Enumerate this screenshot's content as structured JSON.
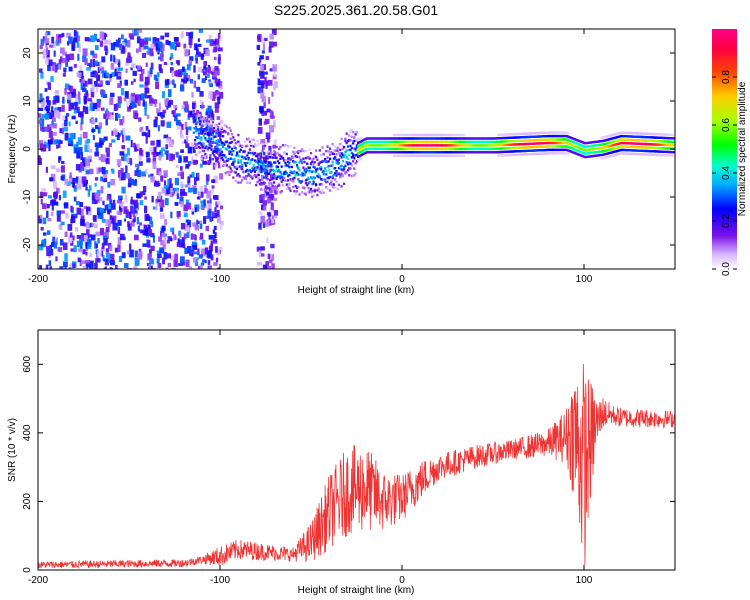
{
  "title": "S225.2025.361.20.58.G01",
  "chart_data": [
    {
      "type": "heatmap",
      "name": "spectrogram",
      "xlabel": "Height of straight line (km)",
      "ylabel": "Frequency (Hz)",
      "xlim": [
        -200,
        150
      ],
      "ylim": [
        -25,
        25
      ],
      "xticks": [
        "-200",
        "-100",
        "0",
        "100"
      ],
      "xtick_values": [
        -200,
        -100,
        0,
        100
      ],
      "yticks": [
        "-20",
        "-10",
        "0",
        "10",
        "20"
      ],
      "ytick_values": [
        -20,
        -10,
        0,
        10,
        20
      ],
      "colorbar": {
        "label": "Normalized spectral amplitude",
        "range": [
          0,
          1
        ],
        "ticks": [
          "0.0",
          "0.2",
          "0.4",
          "0.6",
          "0.8"
        ],
        "tick_values": [
          0,
          0.2,
          0.4,
          0.6,
          0.8
        ]
      },
      "ridge": {
        "x": [
          -115,
          -100,
          -90,
          -80,
          -70,
          -60,
          -50,
          -40,
          -35,
          -30,
          -25,
          -20,
          0,
          20,
          50,
          80,
          90,
          100,
          110,
          120,
          150
        ],
        "freq": [
          4,
          1,
          -2,
          -3,
          -4,
          -4,
          -5,
          -4,
          -3,
          -1,
          0,
          1,
          1,
          1,
          1,
          1.5,
          1.5,
          0,
          0.5,
          1.5,
          1
        ]
      },
      "noise_regions": [
        {
          "x_from": -200,
          "x_to": -100,
          "f_from": -25,
          "f_to": 25,
          "level": 0.3
        },
        {
          "x_from": -80,
          "x_to": -70,
          "f_from": -25,
          "f_to": 25,
          "level": 0.25
        }
      ]
    },
    {
      "type": "line",
      "name": "snr",
      "xlabel": "Height of straight line (km)",
      "ylabel": "SNR (10 * v/v)",
      "xlim": [
        -200,
        150
      ],
      "ylim": [
        0,
        700
      ],
      "xticks": [
        "-200",
        "-100",
        "0",
        "100"
      ],
      "xtick_values": [
        -200,
        -100,
        0,
        100
      ],
      "yticks": [
        "0",
        "200",
        "400",
        "600"
      ],
      "ytick_values": [
        0,
        200,
        400,
        600
      ],
      "color": "#ee3333",
      "trend": {
        "x": [
          -200,
          -120,
          -100,
          -90,
          -80,
          -60,
          -50,
          -40,
          -30,
          -20,
          -10,
          0,
          10,
          20,
          40,
          60,
          80,
          90,
          95,
          100,
          105,
          110,
          120,
          150
        ],
        "y": [
          15,
          20,
          40,
          60,
          55,
          45,
          80,
          170,
          230,
          240,
          200,
          210,
          260,
          300,
          330,
          350,
          370,
          390,
          400,
          300,
          400,
          460,
          445,
          440
        ]
      },
      "spread": {
        "x": [
          -200,
          -110,
          -100,
          -90,
          -60,
          -50,
          -40,
          -30,
          -20,
          -10,
          0,
          10,
          20,
          60,
          80,
          90,
          95,
          100,
          103,
          108,
          115,
          150
        ],
        "y": [
          10,
          12,
          30,
          30,
          20,
          60,
          110,
          130,
          130,
          90,
          70,
          60,
          40,
          30,
          40,
          80,
          200,
          320,
          200,
          60,
          30,
          25
        ]
      }
    }
  ]
}
